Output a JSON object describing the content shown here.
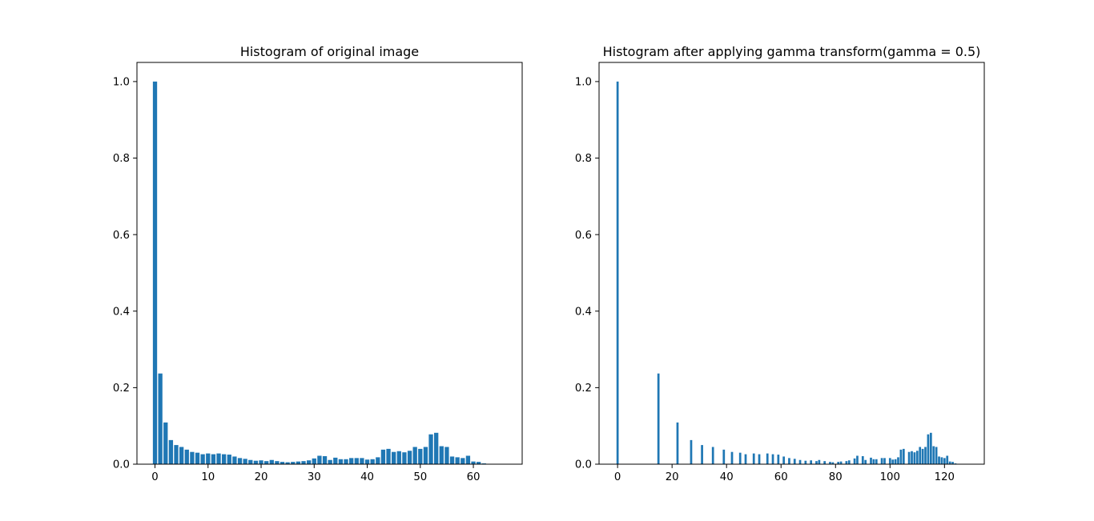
{
  "chart_data": [
    {
      "type": "bar",
      "title": "Histogram of original image",
      "xlabel": "",
      "ylabel": "",
      "xlim": [
        -3.4,
        69.2
      ],
      "ylim": [
        0,
        1.05
      ],
      "xticks": [
        0,
        10,
        20,
        30,
        40,
        50,
        60
      ],
      "yticks": [
        0.0,
        0.2,
        0.4,
        0.6,
        0.8,
        1.0
      ],
      "ytick_labels": [
        "0.0",
        "0.2",
        "0.4",
        "0.6",
        "0.8",
        "1.0"
      ],
      "grid": false,
      "legend": "none",
      "bar_width": 0.8,
      "color": "#1f77b4",
      "x": [
        0,
        1,
        2,
        3,
        4,
        5,
        6,
        7,
        8,
        9,
        10,
        11,
        12,
        13,
        14,
        15,
        16,
        17,
        18,
        19,
        20,
        21,
        22,
        23,
        24,
        25,
        26,
        27,
        28,
        29,
        30,
        31,
        32,
        33,
        34,
        35,
        36,
        37,
        38,
        39,
        40,
        41,
        42,
        43,
        44,
        45,
        46,
        47,
        48,
        49,
        50,
        51,
        52,
        53,
        54,
        55,
        56,
        57,
        58,
        59,
        60,
        61,
        62,
        63,
        64,
        65,
        66
      ],
      "values": [
        1.0,
        0.237,
        0.109,
        0.063,
        0.05,
        0.045,
        0.038,
        0.032,
        0.03,
        0.026,
        0.028,
        0.026,
        0.028,
        0.026,
        0.025,
        0.02,
        0.016,
        0.014,
        0.011,
        0.009,
        0.01,
        0.008,
        0.011,
        0.008,
        0.006,
        0.005,
        0.006,
        0.007,
        0.008,
        0.01,
        0.015,
        0.022,
        0.021,
        0.011,
        0.017,
        0.013,
        0.013,
        0.016,
        0.016,
        0.016,
        0.012,
        0.013,
        0.018,
        0.038,
        0.04,
        0.032,
        0.034,
        0.031,
        0.035,
        0.045,
        0.04,
        0.045,
        0.078,
        0.082,
        0.047,
        0.045,
        0.02,
        0.018,
        0.016,
        0.022,
        0.007,
        0.006,
        0.002,
        0,
        0,
        0,
        0
      ]
    },
    {
      "type": "bar",
      "title": "Histogram after applying gamma transform(gamma = 0.5)",
      "xlabel": "",
      "ylabel": "",
      "xlim": [
        -6.8,
        134.6
      ],
      "ylim": [
        0,
        1.05
      ],
      "xticks": [
        0,
        20,
        40,
        60,
        80,
        100,
        120
      ],
      "yticks": [
        0.0,
        0.2,
        0.4,
        0.6,
        0.8,
        1.0
      ],
      "ytick_labels": [
        "0.0",
        "0.2",
        "0.4",
        "0.6",
        "0.8",
        "1.0"
      ],
      "grid": false,
      "legend": "none",
      "bar_width": 0.8,
      "color": "#1f77b4",
      "x": [
        0,
        15,
        22,
        27,
        31,
        35,
        39,
        42,
        45,
        47,
        50,
        52,
        55,
        57,
        59,
        61,
        63,
        65,
        67,
        69,
        71,
        73,
        74,
        76,
        78,
        79,
        81,
        82,
        84,
        85,
        87,
        88,
        90,
        91,
        93,
        94,
        95,
        97,
        98,
        100,
        101,
        102,
        103,
        104,
        105,
        107,
        108,
        109,
        110,
        111,
        112,
        113,
        114,
        115,
        116,
        117,
        118,
        119,
        120,
        121,
        122,
        123,
        124,
        125
      ],
      "values": [
        1.0,
        0.237,
        0.109,
        0.063,
        0.05,
        0.045,
        0.038,
        0.032,
        0.03,
        0.026,
        0.028,
        0.026,
        0.028,
        0.026,
        0.025,
        0.02,
        0.016,
        0.014,
        0.011,
        0.009,
        0.01,
        0.008,
        0.011,
        0.008,
        0.006,
        0.005,
        0.006,
        0.007,
        0.008,
        0.01,
        0.015,
        0.022,
        0.021,
        0.011,
        0.017,
        0.013,
        0.013,
        0.016,
        0.016,
        0.016,
        0.012,
        0.013,
        0.018,
        0.038,
        0.04,
        0.032,
        0.034,
        0.031,
        0.035,
        0.045,
        0.04,
        0.045,
        0.078,
        0.082,
        0.047,
        0.045,
        0.02,
        0.018,
        0.016,
        0.022,
        0.007,
        0.006,
        0.002,
        0.001
      ]
    }
  ]
}
